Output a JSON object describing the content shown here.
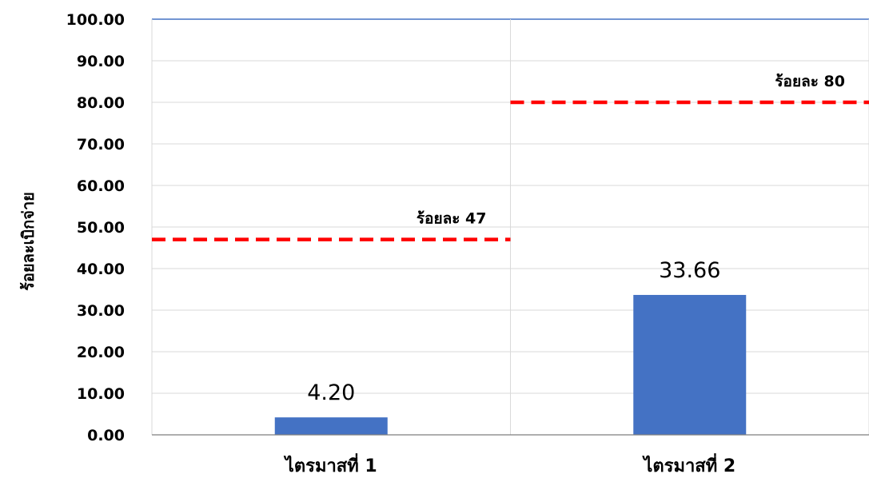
{
  "chart_data": {
    "type": "bar",
    "title": "",
    "xlabel": "",
    "ylabel": "ร้อยละเบิกจ่าย",
    "categories": [
      "ไตรมาสที่ 1",
      "ไตรมาสที่ 2"
    ],
    "series": [
      {
        "values": [
          4.2,
          33.66
        ],
        "data_labels": [
          "4.20",
          "33.66"
        ],
        "color": "#4472C4"
      }
    ],
    "targets": [
      {
        "category": "ไตรมาสที่ 1",
        "value": 47,
        "label": "ร้อยละ 47",
        "color": "#FF0000",
        "style": "dashed"
      },
      {
        "category": "ไตรมาสที่ 2",
        "value": 80,
        "label": "ร้อยละ 80",
        "color": "#FF0000",
        "style": "dashed"
      }
    ],
    "ylim": [
      0,
      100
    ],
    "yticks": [
      "0.00",
      "10.00",
      "20.00",
      "30.00",
      "40.00",
      "50.00",
      "60.00",
      "70.00",
      "80.00",
      "90.00",
      "100.00"
    ],
    "grid": true,
    "legend": "none"
  }
}
